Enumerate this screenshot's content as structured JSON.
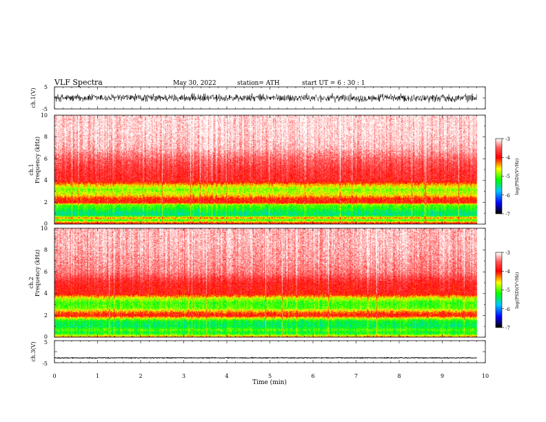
{
  "header": {
    "title": "VLF Spectra",
    "date": "May 30, 2022",
    "station": "station= ATH",
    "start": "start UT = 6 : 30 : 1"
  },
  "chart_data": [
    {
      "type": "line",
      "panel": "ch1-waveform",
      "ylabel": "ch.1(V)",
      "ylim": [
        -5,
        5
      ],
      "yticks": [
        "5",
        "-5"
      ],
      "xlim": [
        0,
        10
      ],
      "x_data_max": 9.8,
      "amplitude_approx": 2.2
    },
    {
      "type": "heatmap",
      "panel": "ch1-spectrogram",
      "ylabel_line1": "ch.1",
      "ylabel_line2": "Frequency (kHz)",
      "yticks": [
        "10",
        "8",
        "6",
        "4",
        "2",
        "0"
      ],
      "ylim": [
        0,
        10
      ],
      "xlim": [
        0,
        10
      ],
      "x_data_max": 9.8,
      "profile_log_psd": [
        [
          0.0,
          -3.5
        ],
        [
          0.4,
          -5.2
        ],
        [
          0.6,
          -4.2
        ],
        [
          0.8,
          -5.4
        ],
        [
          1.0,
          -5.5
        ],
        [
          1.3,
          -5.3
        ],
        [
          1.8,
          -5.0
        ],
        [
          2.0,
          -3.9
        ],
        [
          2.4,
          -4.1
        ],
        [
          2.7,
          -4.6
        ],
        [
          3.2,
          -4.9
        ],
        [
          3.6,
          -4.5
        ],
        [
          4.0,
          -3.8
        ],
        [
          5.0,
          -3.7
        ],
        [
          6.0,
          -3.5
        ],
        [
          7.0,
          -3.2
        ],
        [
          8.5,
          -3.1
        ],
        [
          10.0,
          -3.1
        ]
      ],
      "colorbar": {
        "label": "log(PSD)(V²/Hz)",
        "ticks": [
          "-3",
          "-4",
          "-5",
          "-6",
          "-7"
        ],
        "range": [
          -7,
          -3
        ]
      }
    },
    {
      "type": "heatmap",
      "panel": "ch2-spectrogram",
      "ylabel_line1": "ch.2",
      "ylabel_line2": "Frequency (kHz)",
      "yticks": [
        "10",
        "8",
        "6",
        "4",
        "2",
        "0"
      ],
      "ylim": [
        0,
        10
      ],
      "xlim": [
        0,
        10
      ],
      "x_data_max": 9.8,
      "profile_log_psd": [
        [
          0.0,
          -4.2
        ],
        [
          0.4,
          -5.3
        ],
        [
          0.7,
          -5.0
        ],
        [
          1.0,
          -5.4
        ],
        [
          1.5,
          -5.3
        ],
        [
          1.8,
          -4.6
        ],
        [
          2.0,
          -3.9
        ],
        [
          2.3,
          -4.2
        ],
        [
          2.7,
          -5.0
        ],
        [
          3.2,
          -5.1
        ],
        [
          3.6,
          -4.7
        ],
        [
          4.0,
          -3.9
        ],
        [
          5.0,
          -3.8
        ],
        [
          6.0,
          -3.4
        ],
        [
          7.0,
          -3.3
        ],
        [
          8.5,
          -3.2
        ],
        [
          10.0,
          -3.2
        ]
      ],
      "colorbar": {
        "label": "log(PSD)(V²/Hz)",
        "ticks": [
          "-3",
          "-4",
          "-5",
          "-6",
          "-7"
        ],
        "range": [
          -7,
          -3
        ]
      }
    },
    {
      "type": "line",
      "panel": "ch3-waveform",
      "ylabel": "ch.3(V)",
      "ylim": [
        -5,
        5
      ],
      "yticks": [
        "5",
        "-5"
      ],
      "xlim": [
        0,
        10
      ],
      "x_data_max": 9.8,
      "amplitude_approx": 0.25,
      "offset_approx": -2.8
    }
  ],
  "xaxis": {
    "label": "Time (min)",
    "ticks": [
      "0",
      "1",
      "2",
      "3",
      "4",
      "5",
      "6",
      "7",
      "8",
      "9",
      "10"
    ]
  },
  "colors": {
    "min": "#000000",
    "blue": "#0000ff",
    "cyan": "#00ccff",
    "green": "#00ff00",
    "yellow": "#ffff00",
    "red": "#ff0000",
    "white": "#ffffff"
  }
}
